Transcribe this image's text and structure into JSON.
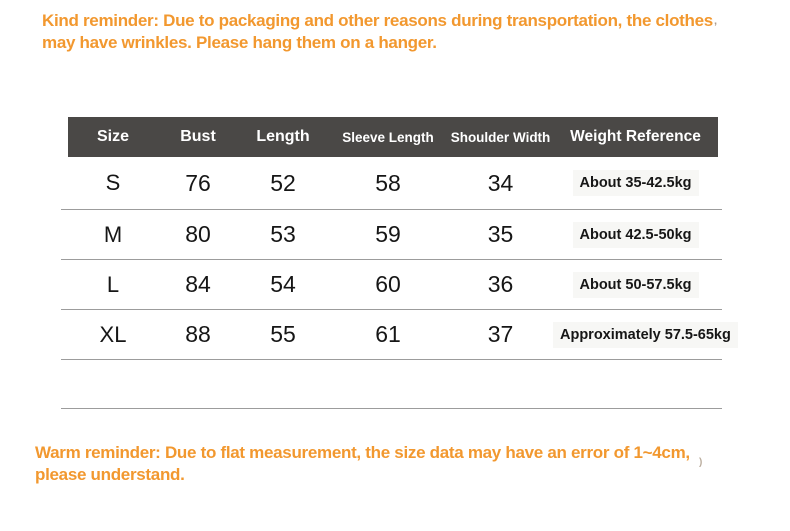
{
  "top_reminder": {
    "text": "Kind reminder: Due to packaging and other reasons during transportation, the clothes\nmay have wrinkles. Please hang them on a hanger."
  },
  "bottom_reminder": {
    "text": "Warm reminder: Due to flat measurement, the size data may have an error of 1~4cm,\nplease understand."
  },
  "size_table": {
    "headers": [
      "Size",
      "Bust",
      "Length",
      "Sleeve Length",
      "Shoulder Width",
      "Weight Reference"
    ],
    "rows": [
      {
        "size": "S",
        "bust": "76",
        "length": "52",
        "sleeve_length": "58",
        "shoulder_width": "34",
        "weight": "About 35-42.5kg"
      },
      {
        "size": "M",
        "bust": "80",
        "length": "53",
        "sleeve_length": "59",
        "shoulder_width": "35",
        "weight": "About 42.5-50kg"
      },
      {
        "size": "L",
        "bust": "84",
        "length": "54",
        "sleeve_length": "60",
        "shoulder_width": "36",
        "weight": "About 50-57.5kg"
      },
      {
        "size": "XL",
        "bust": "88",
        "length": "55",
        "sleeve_length": "61",
        "shoulder_width": "37",
        "weight": "Approximately 57.5-65kg"
      }
    ]
  },
  "artifacts": {
    "top_right_mark": "’",
    "bottom_right_mark": ")"
  },
  "colors": {
    "accent_orange": "#F2982F",
    "header_bg": "#4A4846",
    "divider": "#9C9C9C",
    "weight_cell_bg": "#F7F7F5"
  }
}
